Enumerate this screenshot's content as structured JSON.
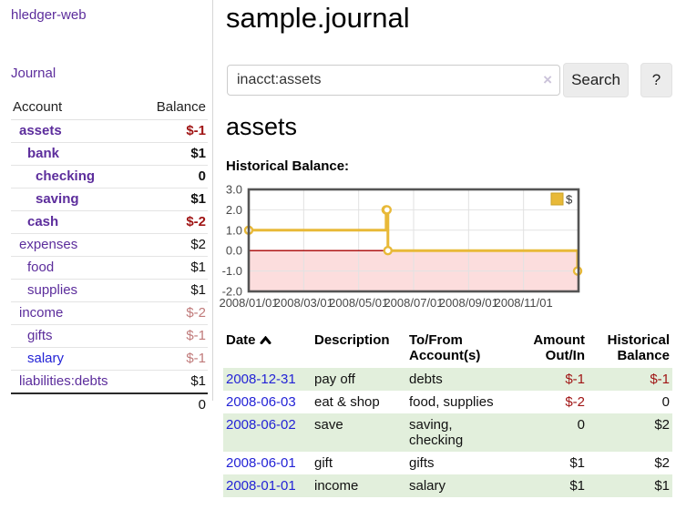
{
  "app": {
    "brand": "hledger-web",
    "nav_journal": "Journal"
  },
  "sidebar": {
    "col_account": "Account",
    "col_balance": "Balance",
    "accounts": [
      {
        "name": "assets",
        "depth": 1,
        "bold": true,
        "balance": "$-1",
        "balance_style": "neg-bold",
        "link_variant": "purple"
      },
      {
        "name": "bank",
        "depth": 2,
        "bold": true,
        "balance": "$1",
        "balance_style": "bold",
        "link_variant": "purple"
      },
      {
        "name": "checking",
        "depth": 3,
        "bold": true,
        "balance": "0",
        "balance_style": "bold",
        "link_variant": "purple"
      },
      {
        "name": "saving",
        "depth": 3,
        "bold": true,
        "balance": "$1",
        "balance_style": "bold",
        "link_variant": "purple"
      },
      {
        "name": "cash",
        "depth": 2,
        "bold": true,
        "balance": "$-2",
        "balance_style": "neg-bold",
        "link_variant": "purple"
      },
      {
        "name": "expenses",
        "depth": 1,
        "bold": false,
        "balance": "$2",
        "balance_style": "plain",
        "link_variant": "purple"
      },
      {
        "name": "food",
        "depth": 2,
        "bold": false,
        "balance": "$1",
        "balance_style": "plain",
        "link_variant": "purple"
      },
      {
        "name": "supplies",
        "depth": 2,
        "bold": false,
        "balance": "$1",
        "balance_style": "plain",
        "link_variant": "purple"
      },
      {
        "name": "income",
        "depth": 1,
        "bold": false,
        "balance": "$-2",
        "balance_style": "neg-muted",
        "link_variant": "purple"
      },
      {
        "name": "gifts",
        "depth": 2,
        "bold": false,
        "balance": "$-1",
        "balance_style": "neg-muted",
        "link_variant": "purple"
      },
      {
        "name": "salary",
        "depth": 2,
        "bold": false,
        "balance": "$-1",
        "balance_style": "neg-muted",
        "link_variant": "blue"
      },
      {
        "name": "liabilities:debts",
        "depth": 1,
        "bold": false,
        "balance": "$1",
        "balance_style": "plain",
        "link_variant": "purple"
      }
    ],
    "total": "0"
  },
  "main": {
    "title": "sample.journal",
    "search": {
      "value": "inacct:assets",
      "clear_icon": "×",
      "button_label": "Search",
      "help_label": "?"
    },
    "account_heading": "assets",
    "chart_label": "Historical Balance:"
  },
  "chart_data": {
    "type": "line",
    "step": true,
    "title": "Historical Balance",
    "series": [
      {
        "name": "$",
        "color": "#e8b938",
        "points": [
          {
            "date": "2008-01-01",
            "value": 1
          },
          {
            "date": "2008-06-01",
            "value": 2
          },
          {
            "date": "2008-06-02",
            "value": 2
          },
          {
            "date": "2008-06-03",
            "value": 0
          },
          {
            "date": "2008-12-31",
            "value": -1
          }
        ]
      }
    ],
    "ylim": [
      -2,
      3
    ],
    "yticks": [
      "3.0",
      "2.0",
      "1.0",
      "0.0",
      "-1.0",
      "-2.0"
    ],
    "xticks": [
      "2008/01/01",
      "2008/03/01",
      "2008/05/01",
      "2008/07/01",
      "2008/09/01",
      "2008/11/01"
    ],
    "xrange_months": 12,
    "grid": true,
    "legend_position": "top-right",
    "negative_region_fill": "#fcdddd",
    "zero_line_color": "#aa0000",
    "grid_color": "#e2e2e2",
    "border_color": "#545454"
  },
  "transactions": {
    "headers": {
      "date": "Date",
      "description": "Description",
      "tofrom": "To/From Account(s)",
      "amount": "Amount Out/In",
      "balance": "Historical Balance"
    },
    "rows": [
      {
        "date": "2008-12-31",
        "description": "pay off",
        "accounts": "debts",
        "amount": "$-1",
        "balance": "$-1"
      },
      {
        "date": "2008-06-03",
        "description": "eat & shop",
        "accounts": "food, supplies",
        "amount": "$-2",
        "balance": "0"
      },
      {
        "date": "2008-06-02",
        "description": "save",
        "accounts": "saving,\nchecking",
        "amount": "0",
        "balance": "$2"
      },
      {
        "date": "2008-06-01",
        "description": "gift",
        "accounts": "gifts",
        "amount": "$1",
        "balance": "$2"
      },
      {
        "date": "2008-01-01",
        "description": "income",
        "accounts": "salary",
        "amount": "$1",
        "balance": "$1"
      }
    ]
  },
  "colors": {
    "accent_purple": "#5c2d9c",
    "link_blue": "#2323d6",
    "negative_red": "#a01515",
    "negative_muted": "#c07a7a",
    "row_green": "#e2efdc",
    "series_gold": "#e8b938"
  }
}
